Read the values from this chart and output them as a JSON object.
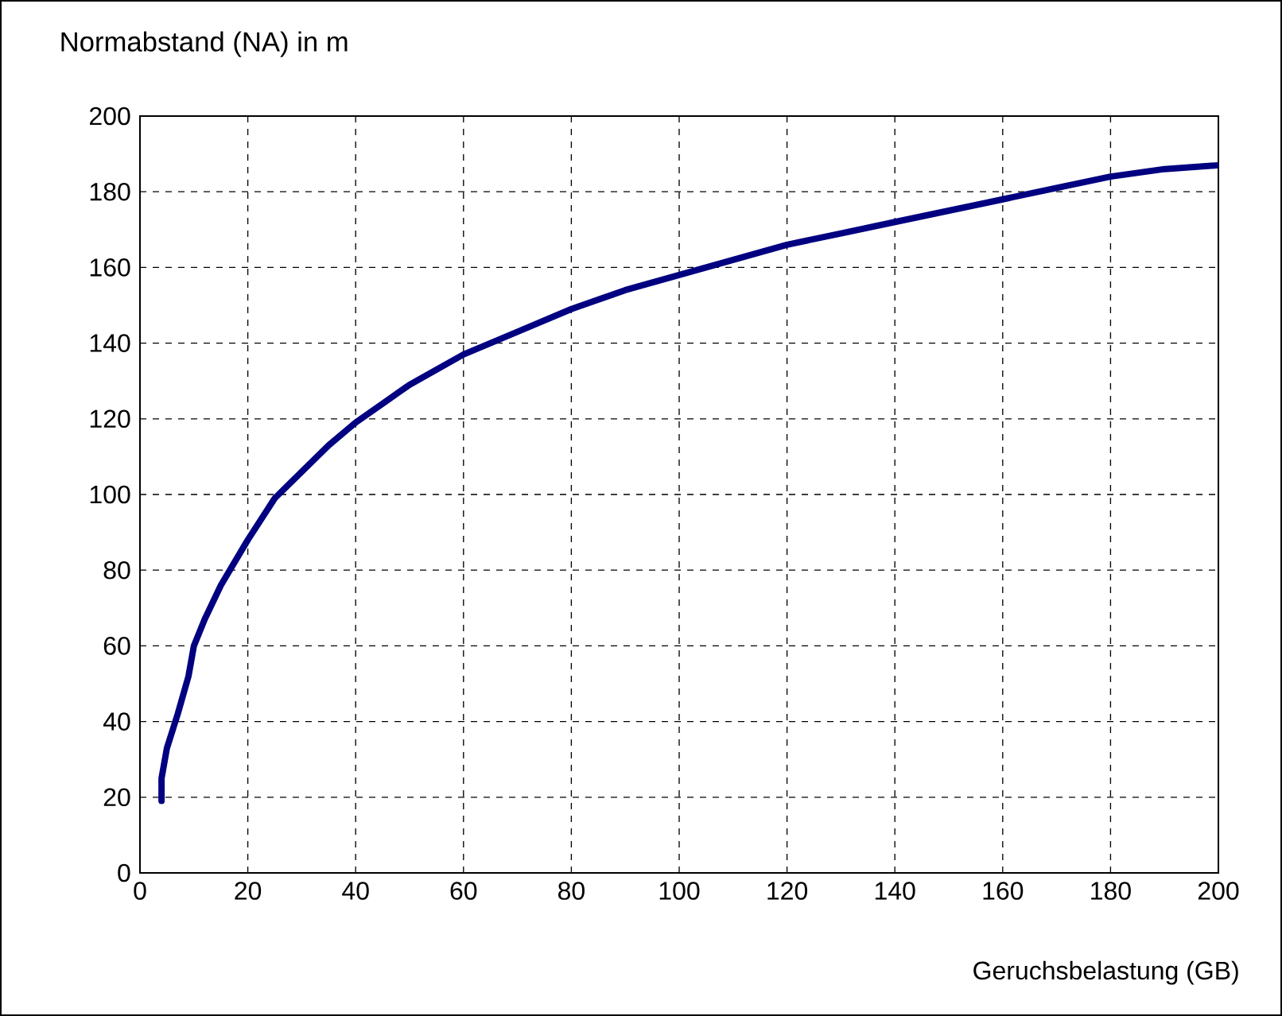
{
  "chart_data": {
    "type": "line",
    "ylabel": "Normabstand (NA) in m",
    "xlabel": "Geruchsbelastung (GB)",
    "x": [
      4,
      4,
      5,
      7,
      9,
      10,
      12,
      15,
      20,
      25,
      30,
      35,
      40,
      45,
      50,
      55,
      60,
      65,
      70,
      80,
      90,
      100,
      110,
      120,
      130,
      140,
      150,
      160,
      170,
      180,
      190,
      200
    ],
    "values": [
      19,
      25,
      33,
      42,
      52,
      60,
      67,
      76,
      88,
      99,
      106,
      113,
      119,
      124,
      129,
      133,
      137,
      140,
      143,
      149,
      154,
      158,
      162,
      166,
      169,
      172,
      175,
      178,
      181,
      184,
      186,
      187
    ],
    "color": "#000080",
    "xlim": [
      0,
      200
    ],
    "ylim": [
      0,
      200
    ],
    "xticks": [
      0,
      20,
      40,
      60,
      80,
      100,
      120,
      140,
      160,
      180,
      200
    ],
    "yticks": [
      0,
      20,
      40,
      60,
      80,
      100,
      120,
      140,
      160,
      180,
      200
    ],
    "grid": true
  }
}
